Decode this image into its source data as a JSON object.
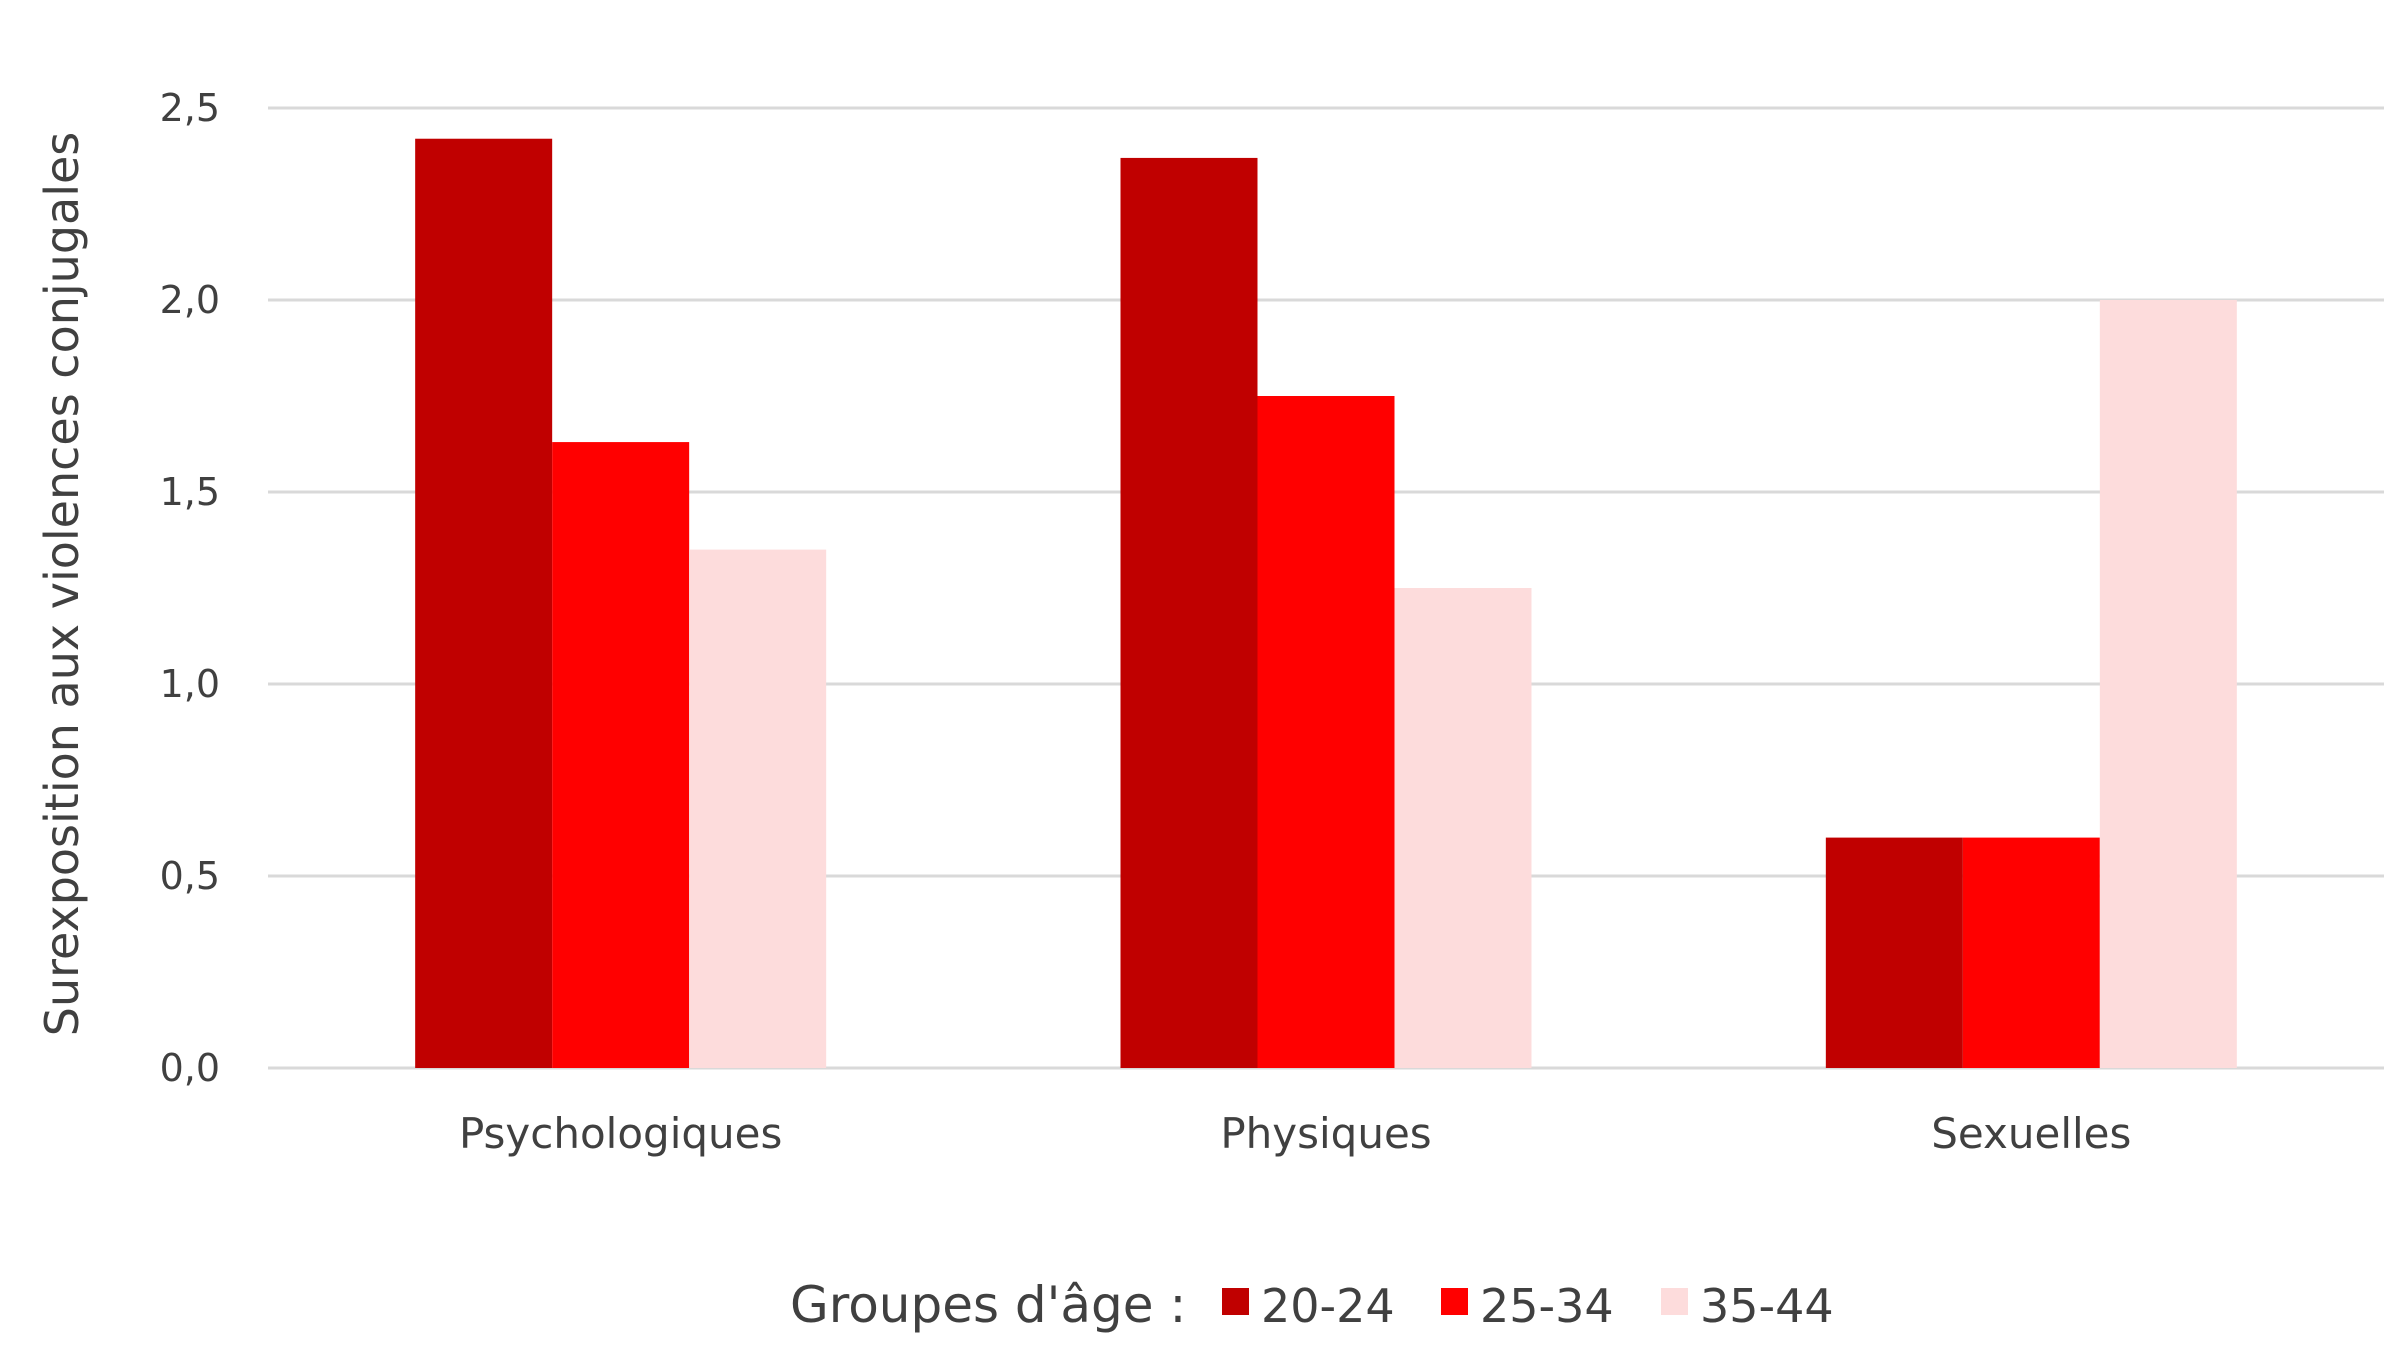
{
  "chart_data": {
    "type": "bar",
    "title": "",
    "xlabel": "",
    "ylabel": "Surexposition aux violences conjugales",
    "categories": [
      "Psychologiques",
      "Physiques",
      "Sexuelles"
    ],
    "series": [
      {
        "name": "20-24",
        "values": [
          2.42,
          2.37,
          0.6
        ],
        "color": "#C00000"
      },
      {
        "name": "25-34",
        "values": [
          1.63,
          1.75,
          0.6
        ],
        "color": "#FF0000"
      },
      {
        "name": "35-44",
        "values": [
          1.35,
          1.25,
          2.0
        ],
        "color": "#FDDCDC"
      }
    ],
    "ylim": [
      0,
      2.5
    ],
    "yticks": [
      "0,0",
      "0,5",
      "1,0",
      "1,5",
      "2,0",
      "2,5"
    ],
    "grid": true,
    "legend": {
      "title": "Groupes d'âge :",
      "placement": "bottom"
    },
    "gridColor": "#D9D9D9"
  }
}
